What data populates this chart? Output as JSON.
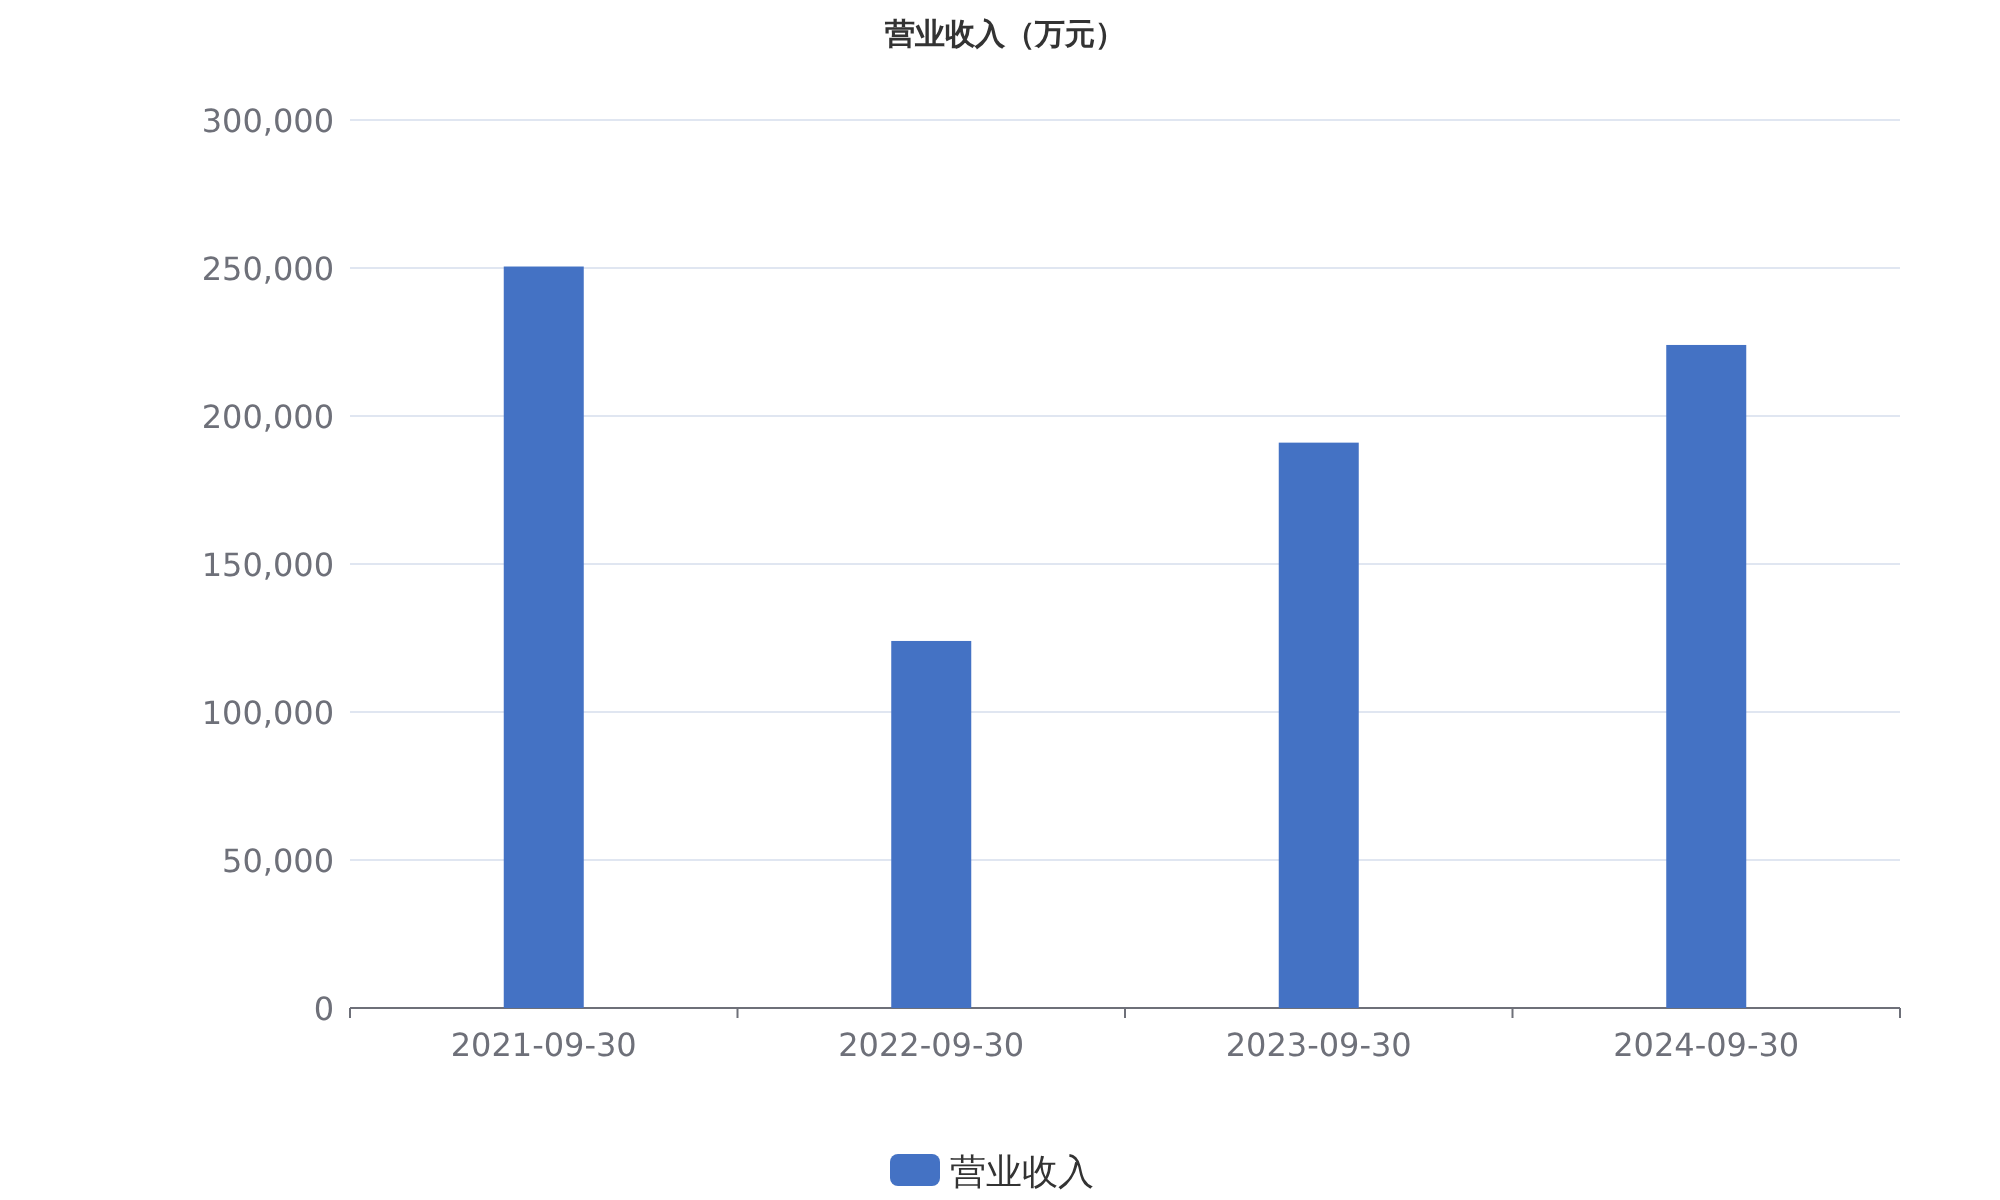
{
  "chart_data": {
    "type": "bar",
    "title": "营业收入（万元）",
    "categories": [
      "2021-09-30",
      "2022-09-30",
      "2023-09-30",
      "2024-09-30"
    ],
    "series": [
      {
        "name": "营业收入",
        "color": "#4472c4",
        "values": [
          250500,
          124000,
          191000,
          224000
        ]
      }
    ],
    "ylim": [
      0,
      300000
    ],
    "yticks": [
      0,
      {
        "value": 50000,
        "label": "50,000"
      },
      {
        "value": 100000,
        "label": "100,000"
      },
      {
        "value": 150000,
        "label": "150,000"
      },
      {
        "value": 200000,
        "label": "200,000"
      },
      {
        "value": 250000,
        "label": "250,000"
      },
      {
        "value": 300000,
        "label": "300,000"
      }
    ],
    "grid": "y",
    "legend": "bottom"
  }
}
